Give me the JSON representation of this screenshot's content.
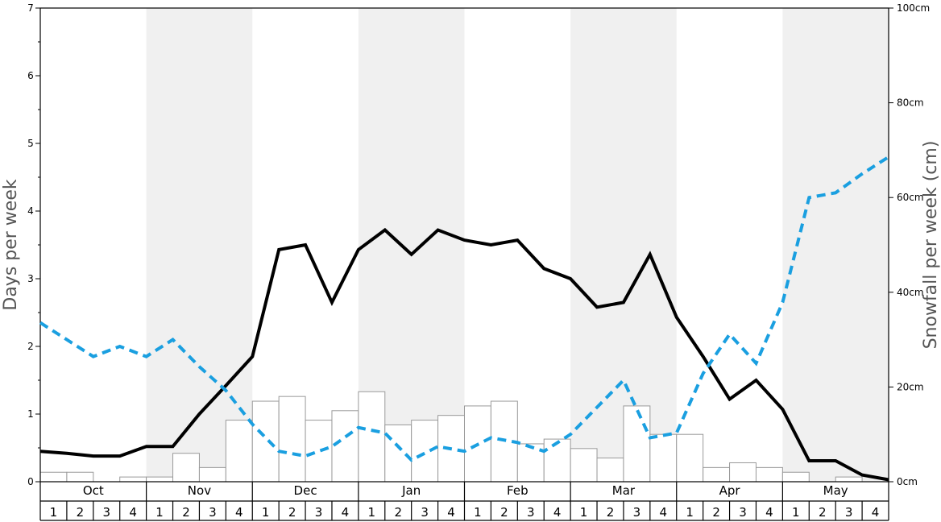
{
  "chart_data": {
    "type": "bar+line",
    "left_axis": {
      "label": "Days per week",
      "min": 0,
      "max": 7,
      "ticks": [
        "0",
        "1",
        "2",
        "3",
        "4",
        "5",
        "6",
        "7"
      ]
    },
    "right_axis": {
      "label": "Snowfall per week (cm)",
      "min": 0,
      "max": 100,
      "ticks": [
        "0cm",
        "20cm",
        "40cm",
        "60cm",
        "80cm",
        "100cm"
      ]
    },
    "months": [
      "Oct",
      "Nov",
      "Dec",
      "Jan",
      "Feb",
      "Mar",
      "Apr",
      "May"
    ],
    "weeks": [
      "1",
      "2",
      "3",
      "4"
    ],
    "shaded_months": [
      "Nov",
      "Jan",
      "Mar",
      "May"
    ],
    "series": [
      {
        "kind": "bar",
        "axis": "right",
        "color": "#ffffff",
        "stroke": "#999999",
        "values": [
          2,
          2,
          0,
          1,
          1,
          6,
          3,
          13,
          17,
          18,
          13,
          15,
          19,
          12,
          13,
          14,
          16,
          17,
          8,
          9,
          7,
          5,
          16,
          10,
          10,
          3,
          4,
          3,
          2,
          0,
          1,
          0
        ]
      },
      {
        "kind": "line",
        "axis": "left",
        "style": "solid",
        "color": "#000000",
        "values": [
          0.45,
          0.42,
          0.38,
          0.38,
          0.52,
          0.52,
          1.0,
          1.42,
          1.85,
          3.43,
          3.5,
          2.65,
          3.43,
          3.72,
          3.36,
          3.72,
          3.57,
          3.5,
          3.57,
          3.15,
          3.0,
          2.58,
          2.65,
          3.36,
          2.43,
          1.85,
          1.22,
          1.5,
          1.07,
          0.31,
          0.31,
          0.1
        ]
      },
      {
        "kind": "line",
        "axis": "left",
        "style": "dashed",
        "color": "#1a9fe0",
        "values": [
          2.35,
          2.1,
          1.85,
          2.0,
          1.85,
          2.1,
          1.7,
          1.35,
          0.85,
          0.45,
          0.38,
          0.52,
          0.8,
          0.72,
          0.32,
          0.52,
          0.45,
          0.65,
          0.58,
          0.45,
          0.7,
          1.1,
          1.5,
          0.65,
          0.72,
          1.6,
          2.18,
          1.75,
          2.65,
          4.2,
          4.27,
          4.55
        ]
      }
    ],
    "last_point": {
      "black": 0.03,
      "blue": 4.8
    }
  }
}
